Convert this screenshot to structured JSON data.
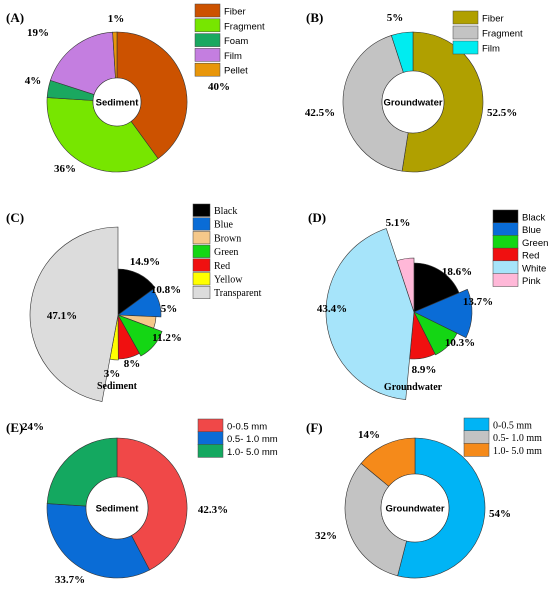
{
  "chart_data": [
    {
      "id": "A",
      "tag": "(A)",
      "type": "donut",
      "center_label": "Sediment",
      "under_label": "",
      "legend_font": "sans",
      "categories": [
        "Fiber",
        "Fragment",
        "Foam",
        "Film",
        "Pellet"
      ],
      "values": [
        40,
        36,
        4,
        19,
        1
      ],
      "value_labels": [
        "40%",
        "36%",
        "4%",
        "19%",
        "1%"
      ],
      "colors": [
        "#cc5200",
        "#77e600",
        "#1aa860",
        "#c47ee0",
        "#e8960a"
      ]
    },
    {
      "id": "B",
      "tag": "(B)",
      "type": "donut",
      "center_label": "Groundwater",
      "under_label": "",
      "legend_font": "sans",
      "categories": [
        "Fiber",
        "Fragment",
        "Film"
      ],
      "values": [
        52.5,
        42.5,
        5
      ],
      "value_labels": [
        "52.5%",
        "42.5%",
        "5%"
      ],
      "colors": [
        "#b0a000",
        "#c3c3c3",
        "#00ecf0"
      ]
    },
    {
      "id": "C",
      "tag": "(C)",
      "type": "polar-pie",
      "center_label": "",
      "under_label": "Sediment",
      "legend_font": "serif",
      "categories": [
        "Black",
        "Blue",
        "Brown",
        "Green",
        "Red",
        "Yellow",
        "Transparent"
      ],
      "values": [
        14.9,
        10.8,
        5,
        11.2,
        8,
        3,
        47.1
      ],
      "value_labels": [
        "14.9%",
        "10.8%",
        "5%",
        "11.2%",
        "8%",
        "3%",
        "47.1%"
      ],
      "colors": [
        "#000000",
        "#0a6cd6",
        "#f5c88a",
        "#14d614",
        "#f01010",
        "#ffff00",
        "#dcdcdc"
      ]
    },
    {
      "id": "D",
      "tag": "(D)",
      "type": "polar-pie",
      "center_label": "",
      "under_label": "Groundwater",
      "legend_font": "sans",
      "categories": [
        "Black",
        "Blue",
        "Green",
        "Red",
        "White",
        "Pink"
      ],
      "values": [
        18.6,
        13.7,
        10.3,
        8.9,
        43.4,
        5.1
      ],
      "value_labels": [
        "18.6%",
        "13.7%",
        "10.3%",
        "8.9%",
        "43.4%",
        "5.1%"
      ],
      "colors": [
        "#000000",
        "#0a6cd6",
        "#14d614",
        "#f01010",
        "#a6e4fa",
        "#ffb8d8"
      ]
    },
    {
      "id": "E",
      "tag": "(E)",
      "type": "donut",
      "center_label": "Sediment",
      "under_label": "",
      "legend_font": "sans",
      "categories": [
        "0-0.5 mm",
        "0.5- 1.0 mm",
        "1.0- 5.0 mm"
      ],
      "values": [
        42.3,
        33.7,
        24
      ],
      "value_labels": [
        "42.3%",
        "33.7%",
        "24%"
      ],
      "colors": [
        "#f04848",
        "#0a6cd6",
        "#14a860"
      ]
    },
    {
      "id": "F",
      "tag": "(F)",
      "type": "donut",
      "center_label": "Groundwater",
      "under_label": "",
      "legend_font": "serif",
      "categories": [
        "0-0.5 mm",
        "0.5- 1.0 mm",
        "1.0- 5.0 mm"
      ],
      "values": [
        54,
        32,
        14
      ],
      "value_labels": [
        "54%",
        "32%",
        "14%"
      ],
      "colors": [
        "#00b4f5",
        "#c3c3c3",
        "#f58a1a"
      ]
    }
  ]
}
